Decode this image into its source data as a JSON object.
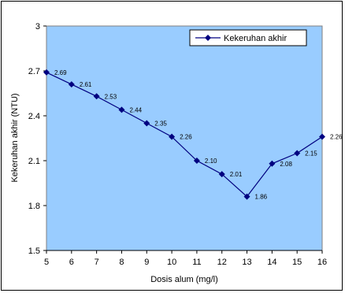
{
  "chart_data": {
    "type": "line",
    "title": "",
    "xlabel": "Dosis alum (mg/l)",
    "ylabel": "Kekeruhan akhir (NTU)",
    "xlim": [
      5,
      16
    ],
    "ylim": [
      1.5,
      3
    ],
    "x_ticks": [
      5,
      6,
      7,
      8,
      9,
      10,
      11,
      12,
      13,
      14,
      15,
      16
    ],
    "y_ticks": [
      "1.5",
      "1.8",
      "2.1",
      "2.4",
      "2.7",
      "3"
    ],
    "grid": false,
    "legend_position": "top-right",
    "plot_background": "#99CCFF",
    "series": [
      {
        "name": "Kekeruhan akhir",
        "color": "#000080",
        "marker": "diamond",
        "x": [
          5,
          6,
          7,
          8,
          9,
          10,
          11,
          12,
          13,
          14,
          15,
          16
        ],
        "values": [
          2.69,
          2.61,
          2.53,
          2.44,
          2.35,
          2.26,
          2.1,
          2.01,
          1.86,
          2.08,
          2.15,
          2.26
        ],
        "labels": [
          "2.69",
          "2.61",
          "2.53",
          "2.44",
          "2.35",
          "2.26",
          "2.10",
          "2.01",
          "1.86",
          "2.08",
          "2.15",
          "2.26"
        ]
      }
    ]
  }
}
